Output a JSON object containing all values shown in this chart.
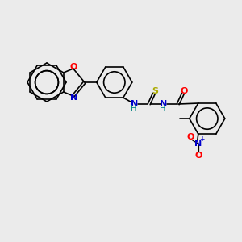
{
  "background_color": "#ebebeb",
  "figsize": [
    3.0,
    3.0
  ],
  "dpi": 100,
  "colors": {
    "bond": "#000000",
    "N": "#0000cc",
    "O": "#ff0000",
    "S": "#aaaa00",
    "NH": "#008080"
  },
  "lw": 1.2,
  "fs": 8.0,
  "fs_small": 7.0
}
